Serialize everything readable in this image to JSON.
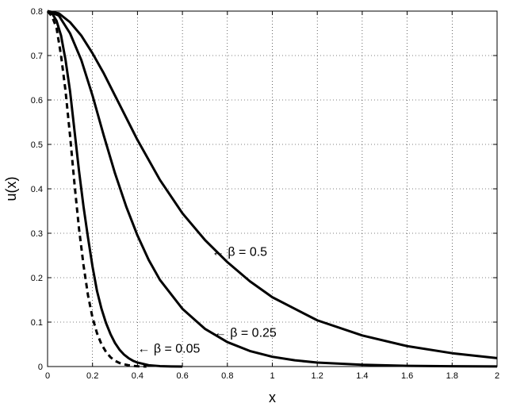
{
  "chart_data": {
    "type": "line",
    "title": "",
    "xlabel": "x",
    "ylabel": "u(x)",
    "xlim": [
      0,
      2
    ],
    "ylim": [
      0,
      0.8
    ],
    "x_ticks": [
      0,
      0.2,
      0.4,
      0.6,
      0.8,
      1,
      1.2,
      1.4,
      1.6,
      1.8,
      2
    ],
    "x_tick_labels": [
      "0",
      "0.2",
      "0.4",
      "0.6",
      "0.8",
      "1",
      "1.2",
      "1.4",
      "1.6",
      "1.8",
      "2"
    ],
    "y_ticks": [
      0,
      0.1,
      0.2,
      0.3,
      0.4,
      0.5,
      0.6,
      0.7,
      0.8
    ],
    "y_tick_labels": [
      "0",
      "0.1",
      "0.2",
      "0.3",
      "0.4",
      "0.5",
      "0.6",
      "0.7",
      "0.8"
    ],
    "grid": true,
    "grid_style": "dotted",
    "line_color": "#000000",
    "series": [
      {
        "style": "dashed",
        "x": [
          0,
          0.02,
          0.04,
          0.06,
          0.08,
          0.1,
          0.12,
          0.14,
          0.16,
          0.18,
          0.2,
          0.22,
          0.24,
          0.26,
          0.28,
          0.3,
          0.32,
          0.34,
          0.36,
          0.38,
          0.4,
          0.42,
          0.44
        ],
        "y": [
          0.8,
          0.788,
          0.762,
          0.7,
          0.62,
          0.52,
          0.41,
          0.31,
          0.228,
          0.16,
          0.11,
          0.075,
          0.05,
          0.033,
          0.021,
          0.013,
          0.008,
          0.005,
          0.003,
          0.0015,
          0.0007,
          0.0003,
          0
        ]
      },
      {
        "style": "solid",
        "x": [
          0,
          0.02,
          0.04,
          0.06,
          0.08,
          0.1,
          0.12,
          0.14,
          0.16,
          0.18,
          0.2,
          0.22,
          0.24,
          0.26,
          0.28,
          0.3,
          0.32,
          0.34,
          0.36,
          0.38,
          0.4,
          0.45,
          0.5,
          0.55,
          0.6
        ],
        "y": [
          0.8,
          0.795,
          0.778,
          0.745,
          0.69,
          0.62,
          0.53,
          0.44,
          0.36,
          0.29,
          0.225,
          0.17,
          0.13,
          0.098,
          0.073,
          0.053,
          0.038,
          0.027,
          0.019,
          0.013,
          0.009,
          0.003,
          0.001,
          0.0003,
          0
        ]
      },
      {
        "style": "solid",
        "x": [
          0,
          0.05,
          0.1,
          0.15,
          0.2,
          0.25,
          0.3,
          0.35,
          0.4,
          0.45,
          0.5,
          0.6,
          0.7,
          0.8,
          0.9,
          1.0,
          1.1,
          1.2,
          1.4,
          1.6,
          1.8,
          2.0
        ],
        "y": [
          0.8,
          0.79,
          0.75,
          0.69,
          0.61,
          0.52,
          0.435,
          0.36,
          0.295,
          0.24,
          0.195,
          0.13,
          0.085,
          0.055,
          0.035,
          0.022,
          0.014,
          0.009,
          0.004,
          0.0015,
          0.0006,
          0.0002
        ]
      },
      {
        "style": "solid",
        "x": [
          0,
          0.05,
          0.1,
          0.15,
          0.2,
          0.25,
          0.3,
          0.4,
          0.5,
          0.6,
          0.7,
          0.8,
          0.9,
          1.0,
          1.2,
          1.4,
          1.6,
          1.8,
          2.0
        ],
        "y": [
          0.8,
          0.795,
          0.775,
          0.745,
          0.705,
          0.66,
          0.61,
          0.51,
          0.42,
          0.345,
          0.285,
          0.235,
          0.192,
          0.156,
          0.104,
          0.07,
          0.046,
          0.03,
          0.019
        ]
      }
    ],
    "annotations": [
      {
        "text": "← β  =  0.5",
        "x": 0.73,
        "y": 0.26
      },
      {
        "text": "← β  =  0.25",
        "x": 0.74,
        "y": 0.078
      },
      {
        "text": "← β  =  0.05",
        "x": 0.4,
        "y": 0.042
      }
    ]
  }
}
